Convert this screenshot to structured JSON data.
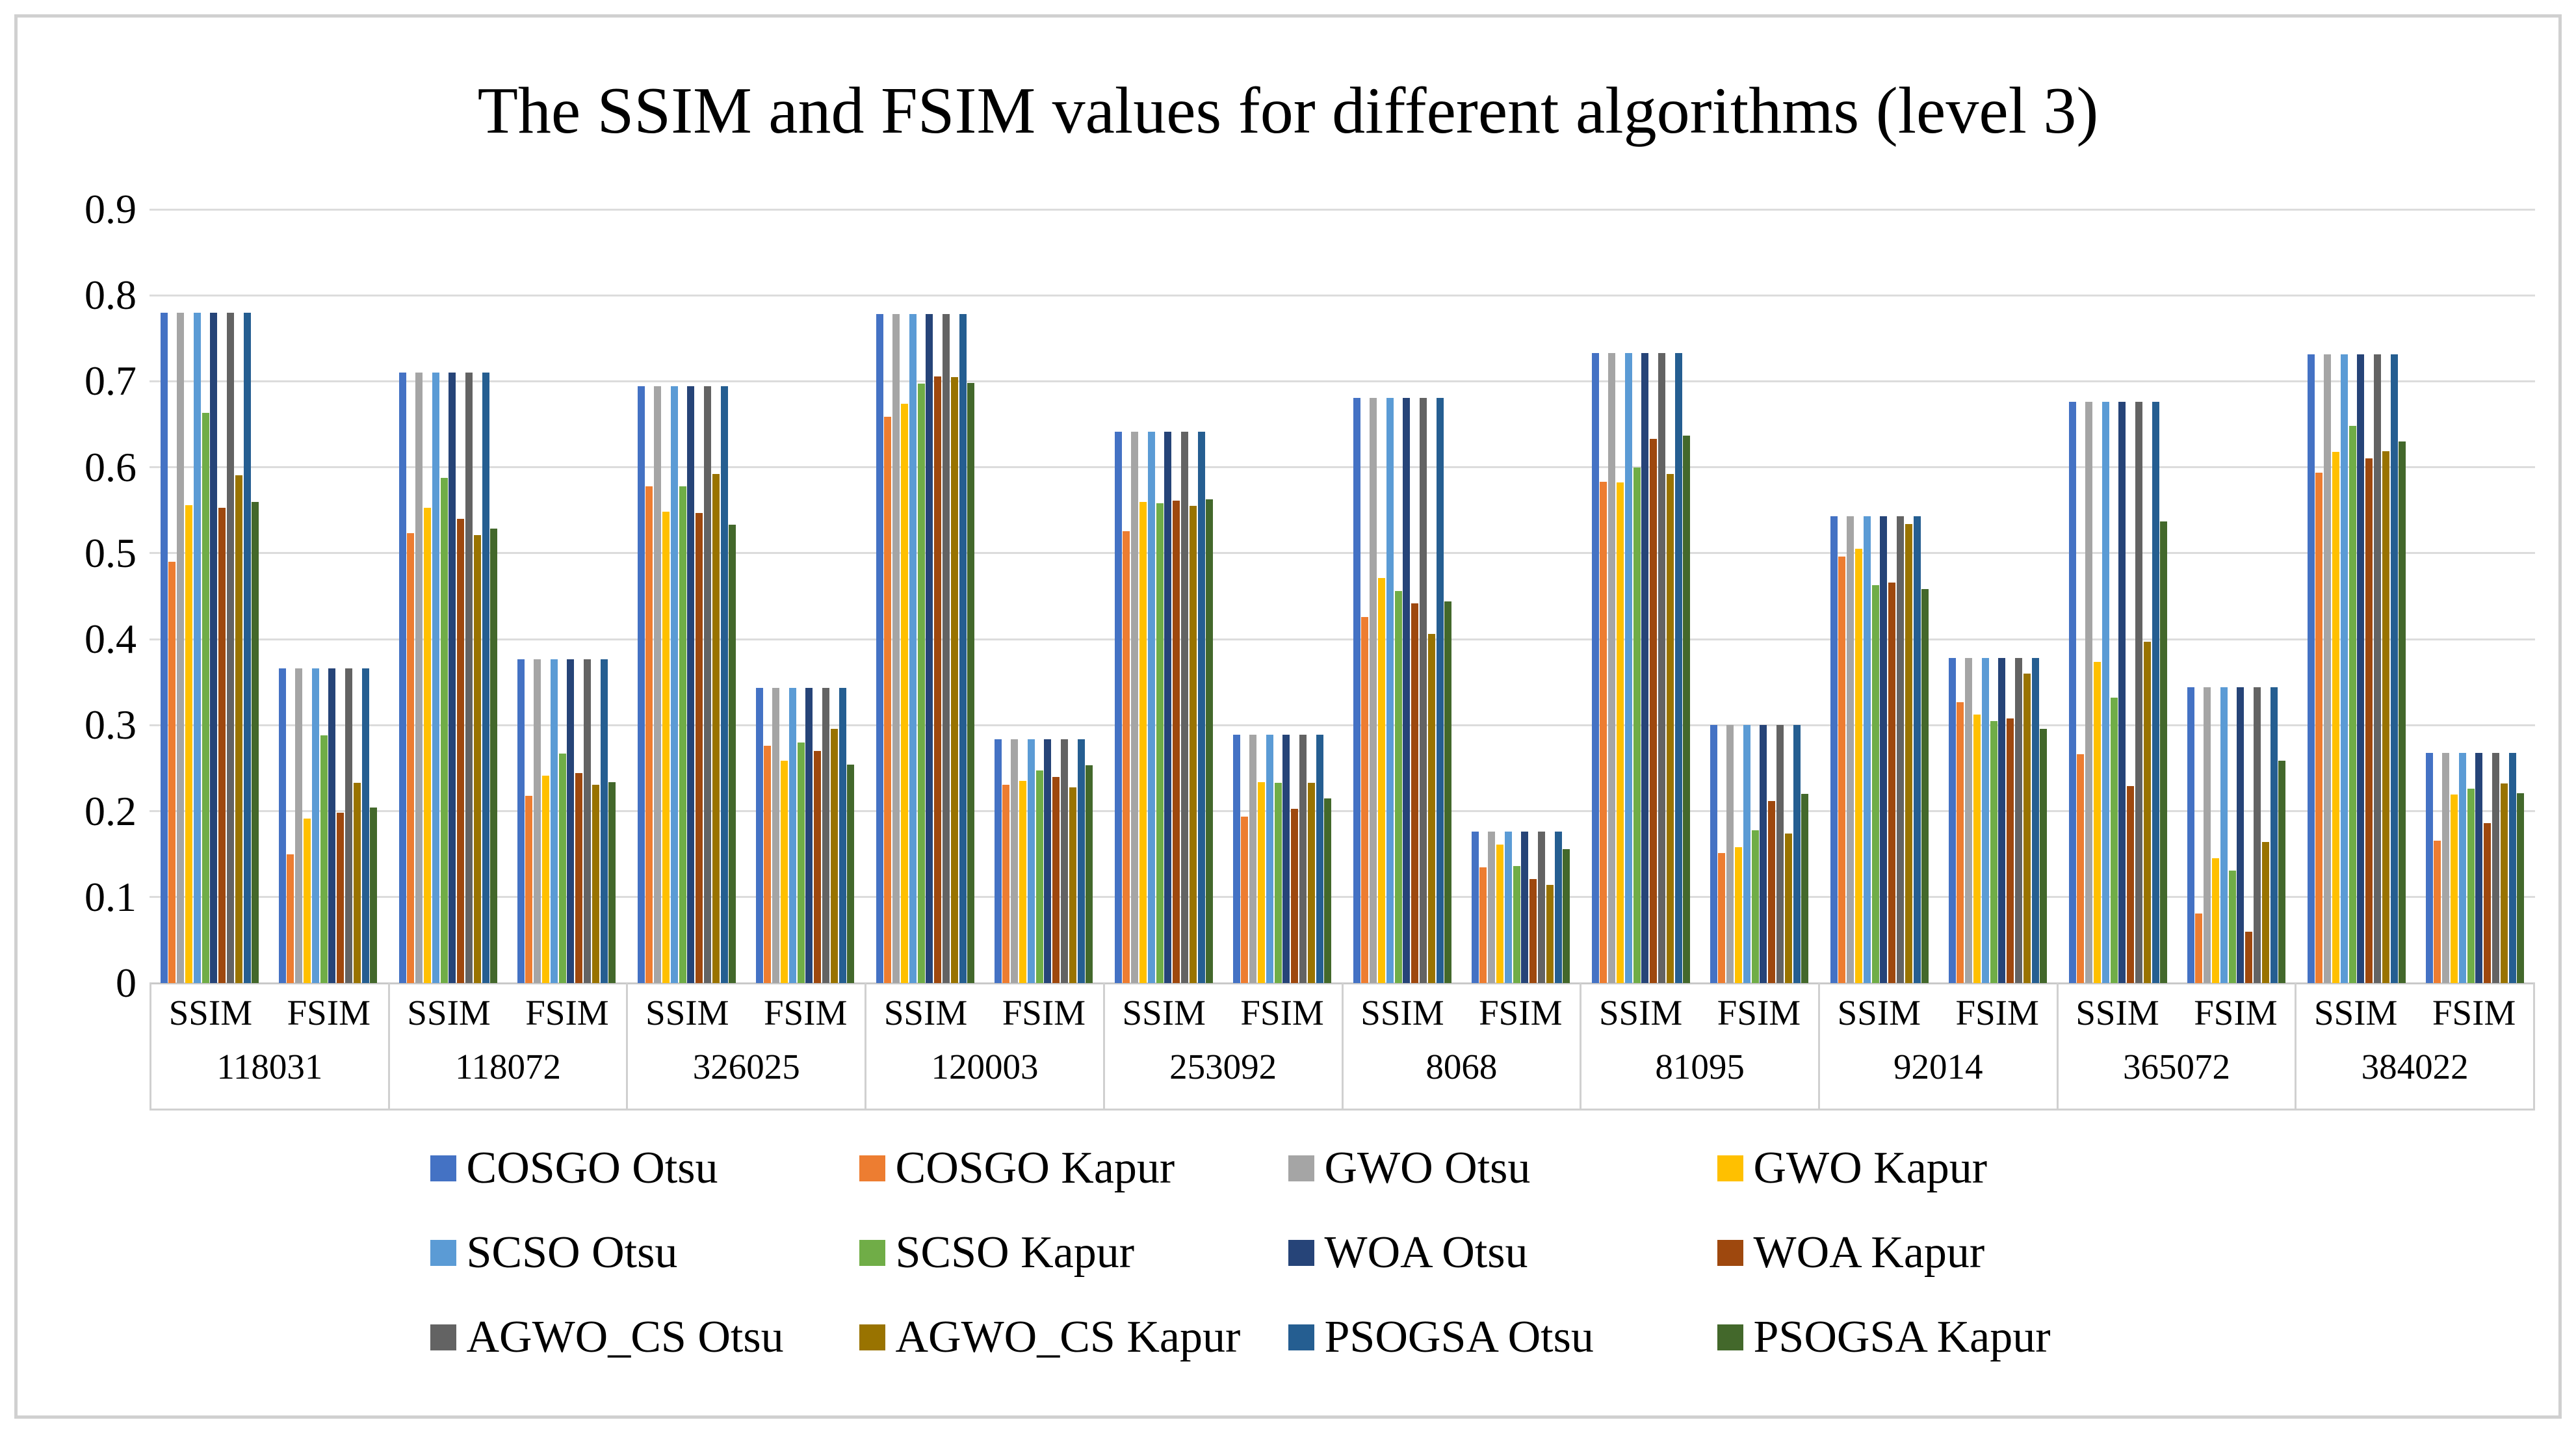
{
  "title": "The SSIM and FSIM values for different algorithms (level 3)",
  "chart_data": {
    "type": "bar",
    "title": "The SSIM and FSIM values for different algorithms (level 3)",
    "ylim": [
      0,
      0.9
    ],
    "ytick_labels": [
      "0",
      "0.1",
      "0.2",
      "0.3",
      "0.4",
      "0.5",
      "0.6",
      "0.7",
      "0.8",
      "0.9"
    ],
    "grid": "horizontal",
    "legend_position": "bottom",
    "sub_labels": [
      "SSIM",
      "FSIM"
    ],
    "series": [
      {
        "name": "COSGO Otsu",
        "color": "#4472C4"
      },
      {
        "name": "COSGO Kapur",
        "color": "#ED7D31"
      },
      {
        "name": "GWO Otsu",
        "color": "#A5A5A5"
      },
      {
        "name": "GWO Kapur",
        "color": "#FFC000"
      },
      {
        "name": "SCSO Otsu",
        "color": "#5B9BD5"
      },
      {
        "name": "SCSO Kapur",
        "color": "#70AD47"
      },
      {
        "name": "WOA Otsu",
        "color": "#264478"
      },
      {
        "name": "WOA Kapur",
        "color": "#9E480E"
      },
      {
        "name": "AGWO_CS Otsu",
        "color": "#636363"
      },
      {
        "name": "AGWO_CS Kapur",
        "color": "#997300"
      },
      {
        "name": "PSOGSA Otsu",
        "color": "#255E91"
      },
      {
        "name": "PSOGSA Kapur",
        "color": "#43682B"
      }
    ],
    "groups": [
      {
        "id": "118031",
        "ssim": [
          0.78,
          0.49,
          0.78,
          0.556,
          0.78,
          0.663,
          0.78,
          0.553,
          0.78,
          0.591,
          0.78,
          0.56
        ],
        "fsim": [
          0.366,
          0.15,
          0.366,
          0.191,
          0.366,
          0.288,
          0.366,
          0.198,
          0.366,
          0.233,
          0.366,
          0.204
        ]
      },
      {
        "id": "118072",
        "ssim": [
          0.71,
          0.523,
          0.71,
          0.553,
          0.71,
          0.588,
          0.71,
          0.54,
          0.71,
          0.521,
          0.71,
          0.529
        ],
        "fsim": [
          0.377,
          0.218,
          0.377,
          0.241,
          0.377,
          0.267,
          0.377,
          0.244,
          0.377,
          0.231,
          0.377,
          0.234
        ]
      },
      {
        "id": "326025",
        "ssim": [
          0.694,
          0.578,
          0.694,
          0.548,
          0.694,
          0.578,
          0.694,
          0.547,
          0.694,
          0.592,
          0.694,
          0.533
        ],
        "fsim": [
          0.343,
          0.276,
          0.343,
          0.259,
          0.343,
          0.28,
          0.343,
          0.27,
          0.343,
          0.296,
          0.343,
          0.254
        ]
      },
      {
        "id": "120003",
        "ssim": [
          0.778,
          0.659,
          0.778,
          0.674,
          0.778,
          0.697,
          0.778,
          0.706,
          0.778,
          0.705,
          0.778,
          0.698
        ],
        "fsim": [
          0.284,
          0.231,
          0.284,
          0.235,
          0.284,
          0.247,
          0.284,
          0.24,
          0.284,
          0.228,
          0.284,
          0.253
        ]
      },
      {
        "id": "253092",
        "ssim": [
          0.641,
          0.526,
          0.641,
          0.56,
          0.641,
          0.558,
          0.641,
          0.561,
          0.641,
          0.555,
          0.641,
          0.563
        ],
        "fsim": [
          0.289,
          0.194,
          0.289,
          0.234,
          0.289,
          0.233,
          0.289,
          0.203,
          0.289,
          0.233,
          0.289,
          0.215
        ]
      },
      {
        "id": "8068",
        "ssim": [
          0.681,
          0.426,
          0.681,
          0.471,
          0.681,
          0.456,
          0.681,
          0.442,
          0.681,
          0.406,
          0.681,
          0.444
        ],
        "fsim": [
          0.176,
          0.135,
          0.176,
          0.161,
          0.176,
          0.136,
          0.176,
          0.121,
          0.176,
          0.114,
          0.176,
          0.156
        ]
      },
      {
        "id": "81095",
        "ssim": [
          0.733,
          0.583,
          0.733,
          0.582,
          0.733,
          0.6,
          0.733,
          0.633,
          0.733,
          0.592,
          0.733,
          0.637
        ],
        "fsim": [
          0.3,
          0.151,
          0.3,
          0.158,
          0.3,
          0.178,
          0.3,
          0.212,
          0.3,
          0.174,
          0.3,
          0.22
        ]
      },
      {
        "id": "92014",
        "ssim": [
          0.543,
          0.496,
          0.543,
          0.505,
          0.543,
          0.463,
          0.543,
          0.466,
          0.543,
          0.534,
          0.543,
          0.458
        ],
        "fsim": [
          0.378,
          0.327,
          0.378,
          0.312,
          0.378,
          0.305,
          0.378,
          0.308,
          0.378,
          0.36,
          0.378,
          0.296
        ]
      },
      {
        "id": "365072",
        "ssim": [
          0.676,
          0.266,
          0.676,
          0.374,
          0.676,
          0.332,
          0.676,
          0.229,
          0.676,
          0.397,
          0.676,
          0.537
        ],
        "fsim": [
          0.344,
          0.081,
          0.344,
          0.145,
          0.344,
          0.131,
          0.344,
          0.06,
          0.344,
          0.164,
          0.344,
          0.259
        ]
      },
      {
        "id": "384022",
        "ssim": [
          0.731,
          0.594,
          0.731,
          0.618,
          0.731,
          0.648,
          0.731,
          0.61,
          0.731,
          0.619,
          0.731,
          0.63
        ],
        "fsim": [
          0.268,
          0.166,
          0.268,
          0.219,
          0.268,
          0.226,
          0.268,
          0.186,
          0.268,
          0.232,
          0.268,
          0.221
        ]
      }
    ]
  }
}
